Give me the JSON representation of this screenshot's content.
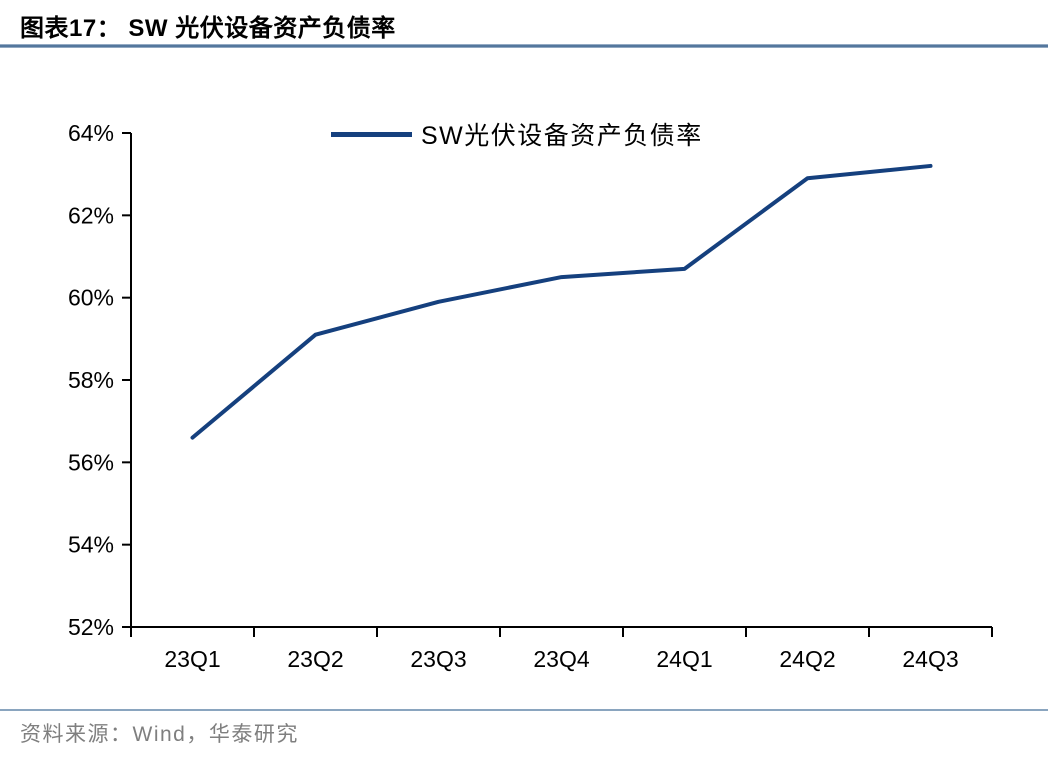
{
  "figure": {
    "title": "图表17： SW 光伏设备资产负债率",
    "source": "资料来源：Wind，华泰研究"
  },
  "colors": {
    "line": "#15407E",
    "axis": "#000000",
    "tick_label": "#000000",
    "title_rule": "#54779d",
    "footer_rule": "#8aa5bf",
    "source_text": "#7f7f7f"
  },
  "chart_data": {
    "type": "line",
    "title": "",
    "xlabel": "",
    "ylabel": "",
    "categories": [
      "23Q1",
      "23Q2",
      "23Q3",
      "23Q4",
      "24Q1",
      "24Q2",
      "24Q3"
    ],
    "series": [
      {
        "name": "SW光伏设备资产负债率",
        "values": [
          56.6,
          59.1,
          59.9,
          60.5,
          60.7,
          62.9,
          63.2
        ]
      }
    ],
    "ylim": [
      52,
      64
    ],
    "ytick_step": 2,
    "ytick_labels": [
      "64%",
      "62%",
      "60%",
      "58%",
      "56%",
      "54%",
      "52%"
    ],
    "grid": false,
    "legend_position": "top-center"
  }
}
